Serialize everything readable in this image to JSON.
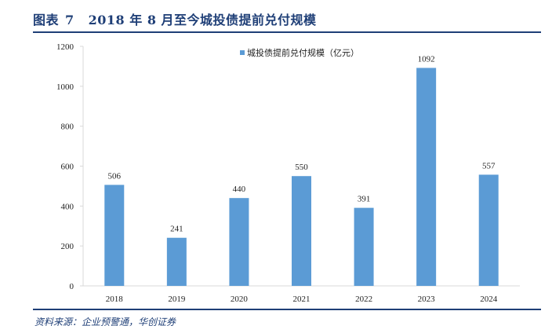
{
  "header": {
    "label": "图表",
    "number": "7",
    "title": "2018 年 8 月至今城投债提前兑付规模"
  },
  "source": "资料来源：企业预警通，华创证券",
  "colors": {
    "bar": "#5b9bd5",
    "accent": "#1f3f77",
    "axis": "#d9d9d9"
  },
  "chart_data": {
    "type": "bar",
    "title": "",
    "categories": [
      "2018",
      "2019",
      "2020",
      "2021",
      "2022",
      "2023",
      "2024"
    ],
    "series": [
      {
        "name": "城投债提前兑付规模（亿元）",
        "values": [
          506,
          241,
          440,
          550,
          391,
          1092,
          557
        ]
      }
    ],
    "ylim": [
      0,
      1200
    ],
    "yticks": [
      0,
      200,
      400,
      600,
      800,
      1000,
      1200
    ],
    "legend": "top-center",
    "grid": false,
    "data_labels": true
  }
}
